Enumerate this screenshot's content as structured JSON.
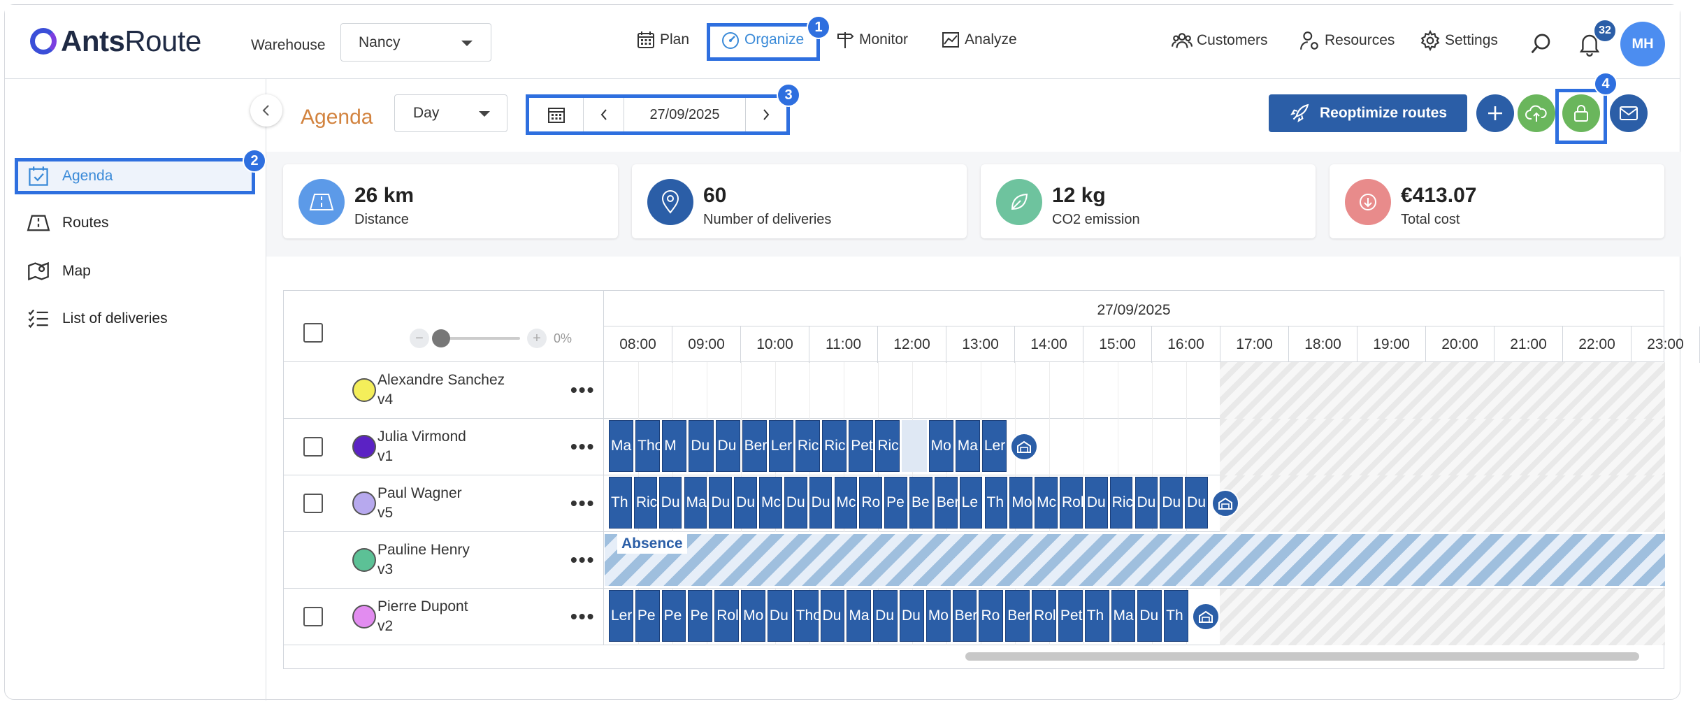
{
  "app": {
    "logo_bold": "Ants",
    "logo_rest": "Route",
    "accent": "#2b5ea7",
    "highlight": "#2e6fdf"
  },
  "header": {
    "warehouse_label": "Warehouse",
    "warehouse_value": "Nancy",
    "nav": {
      "plan": "Plan",
      "organize": "Organize",
      "monitor": "Monitor",
      "analyze": "Analyze",
      "customers": "Customers",
      "resources": "Resources",
      "settings": "Settings"
    },
    "notifications_count": "32",
    "avatar_initials": "MH"
  },
  "callouts": [
    "1",
    "2",
    "3",
    "4"
  ],
  "sidebar": {
    "items": [
      {
        "label": "Agenda",
        "icon": "calendar-check-icon",
        "active": true
      },
      {
        "label": "Routes",
        "icon": "road-sign-icon",
        "active": false
      },
      {
        "label": "Map",
        "icon": "map-pin-icon",
        "active": false
      },
      {
        "label": "List of deliveries",
        "icon": "checklist-icon",
        "active": false
      }
    ]
  },
  "toolbar": {
    "title": "Agenda",
    "view_mode": "Day",
    "date": "27/09/2025",
    "reoptimize_label": "Reoptimize routes"
  },
  "kpis": [
    {
      "value": "26 km",
      "label": "Distance",
      "color": "#5c9ae8",
      "icon": "road-icon"
    },
    {
      "value": "60",
      "label": "Number of deliveries",
      "color": "#2b5ea7",
      "icon": "location-pin-icon"
    },
    {
      "value": "12 kg",
      "label": "CO2 emission",
      "color": "#6ec39e",
      "icon": "leaf-icon"
    },
    {
      "value": "€413.07",
      "label": "Total cost",
      "color": "#e88b8b",
      "icon": "arrow-down-circle-icon"
    }
  ],
  "gantt": {
    "date": "27/09/2025",
    "zoom_percent": "0%",
    "hours": [
      "08:00",
      "09:00",
      "10:00",
      "11:00",
      "12:00",
      "13:00",
      "14:00",
      "15:00",
      "16:00",
      "17:00",
      "18:00",
      "19:00",
      "20:00",
      "21:00",
      "22:00",
      "23:00"
    ],
    "rows": [
      {
        "name": "Alexandre Sanchez",
        "vehicle": "v4",
        "color": "#f4ee5a",
        "checkbox": false,
        "blocks": []
      },
      {
        "name": "Julia Virmond",
        "vehicle": "v1",
        "color": "#5b22c4",
        "checkbox": true,
        "blocks": [
          "Ma",
          "Tho",
          "M",
          "Du",
          "Du",
          "Ber",
          "Ler",
          "Ric",
          "Ric",
          "Pet",
          "Ric",
          "",
          "Mo",
          "Ma",
          "Ler"
        ]
      },
      {
        "name": "Paul Wagner",
        "vehicle": "v5",
        "color": "#b7a9ee",
        "checkbox": true,
        "blocks": [
          "Th",
          "Ric",
          "Du",
          "Ma",
          "Du",
          "Du",
          "Mc",
          "Du",
          "Du",
          "Mc",
          "Ro",
          "Pe",
          "Be",
          "Ber",
          "Le",
          "Th",
          "Mo",
          "Mc",
          "Rol",
          "Du",
          "Ric",
          "Du",
          "Du",
          "Du"
        ]
      },
      {
        "name": "Pauline Henry",
        "vehicle": "v3",
        "color": "#5cc196",
        "checkbox": false,
        "absence": "Absence",
        "blocks": []
      },
      {
        "name": "Pierre Dupont",
        "vehicle": "v2",
        "color": "#e28cf0",
        "checkbox": true,
        "blocks": [
          "Ler",
          "Pe",
          "Pe",
          "Pe",
          "Rol",
          "Mo",
          "Du",
          "Tho",
          "Du",
          "Ma",
          "Du",
          "Du",
          "Mo",
          "Ber",
          "Ro",
          "Ber",
          "Rol",
          "Pet",
          "Th",
          "Ma",
          "Du",
          "Th"
        ]
      }
    ]
  }
}
